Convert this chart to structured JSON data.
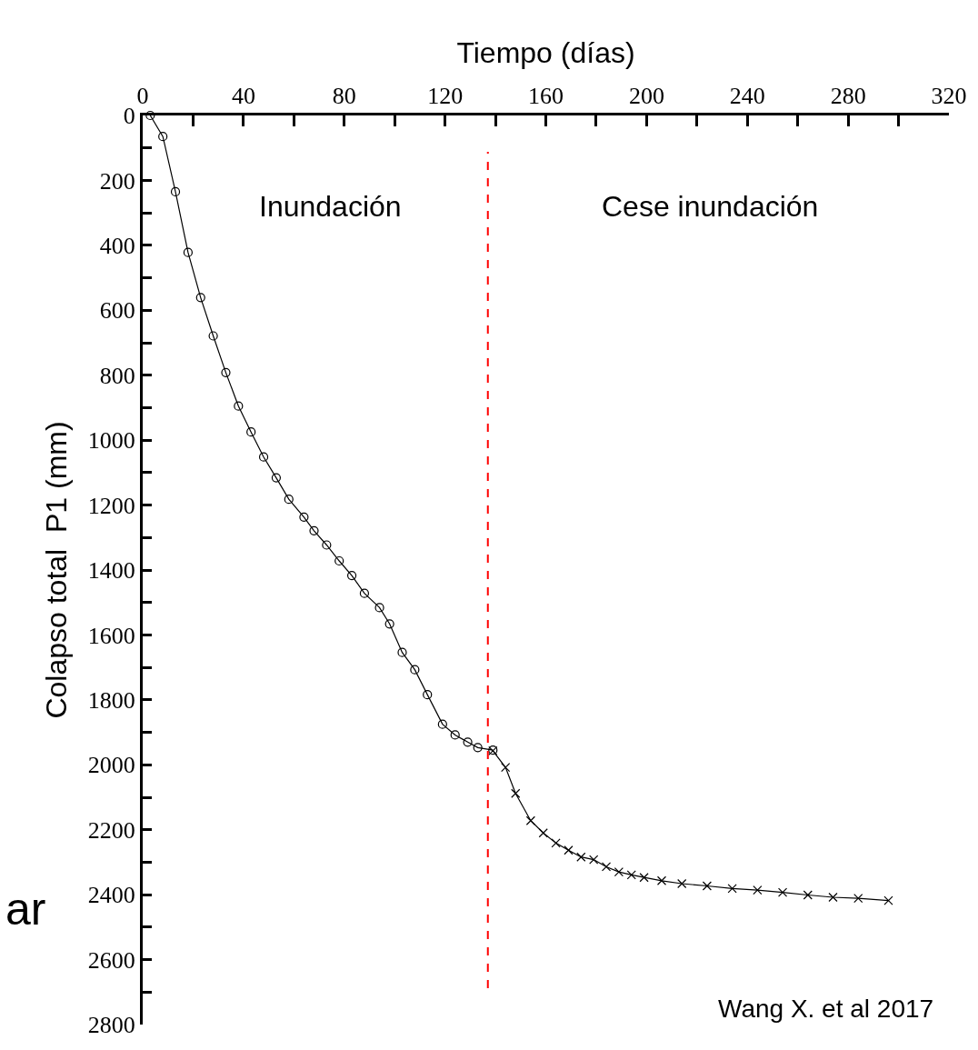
{
  "chart_data": {
    "type": "line",
    "xlabel": "Tiempo (días)",
    "ylabel": "Colapso total  P1 (mm)",
    "xlim": [
      0,
      320
    ],
    "ylim": [
      2800,
      0
    ],
    "xticks": [
      0,
      {
        "value": 20,
        "label": null
      },
      40,
      {
        "value": 60,
        "label": null
      },
      80,
      {
        "value": 100,
        "label": null
      },
      120,
      {
        "value": 140,
        "label": null
      },
      160,
      {
        "value": 180,
        "label": null
      },
      200,
      {
        "value": 220,
        "label": null
      },
      240,
      {
        "value": 260,
        "label": null
      },
      280,
      {
        "value": 300,
        "label": null
      },
      320
    ],
    "yticks": [
      0,
      {
        "value": 100,
        "label": null
      },
      200,
      {
        "value": 300,
        "label": null
      },
      400,
      {
        "value": 500,
        "label": null
      },
      600,
      {
        "value": 700,
        "label": null
      },
      800,
      {
        "value": 900,
        "label": null
      },
      1000,
      {
        "value": 1100,
        "label": null
      },
      1200,
      {
        "value": 1300,
        "label": null
      },
      1400,
      {
        "value": 1500,
        "label": null
      },
      1600,
      {
        "value": 1700,
        "label": null
      },
      1800,
      {
        "value": 1900,
        "label": null
      },
      2000,
      {
        "value": 2100,
        "label": null
      },
      2200,
      {
        "value": 2300,
        "label": null
      },
      2400,
      {
        "value": 2500,
        "label": null
      },
      2600,
      {
        "value": 2700,
        "label": null
      },
      2800
    ],
    "line_style": "solid",
    "series": [
      {
        "color": "#000000",
        "marker": "circle",
        "x": [
          3,
          8,
          13,
          18,
          23,
          28,
          33,
          38,
          43,
          48,
          53,
          58,
          64,
          68,
          73,
          78,
          83,
          88,
          94,
          98,
          103,
          108,
          113,
          119,
          124,
          129,
          133,
          139
        ],
        "values": [
          0,
          65,
          235,
          422,
          561,
          679,
          792,
          895,
          975,
          1052,
          1116,
          1182,
          1237,
          1279,
          1323,
          1372,
          1417,
          1472,
          1516,
          1566,
          1654,
          1707,
          1784,
          1875,
          1908,
          1930,
          1947,
          1955
        ]
      },
      {
        "color": "#000000",
        "marker": "cross",
        "x": [
          139,
          144,
          148,
          154,
          159,
          164,
          169,
          174,
          179,
          184,
          189,
          194,
          199,
          206,
          214,
          224,
          234,
          244,
          254,
          264,
          274,
          284,
          296
        ],
        "values": [
          1957,
          2008,
          2088,
          2172,
          2210,
          2241,
          2263,
          2284,
          2292,
          2314,
          2330,
          2339,
          2347,
          2357,
          2366,
          2373,
          2381,
          2386,
          2393,
          2401,
          2408,
          2411,
          2418
        ]
      }
    ],
    "ref_lines": [
      {
        "axis": "x",
        "value": 137,
        "color": "#ff0000",
        "line_style": "dashed"
      }
    ],
    "annotations": [
      "Inundación",
      "Cese inundación",
      "ar",
      "Wang X. et al 2017"
    ]
  }
}
